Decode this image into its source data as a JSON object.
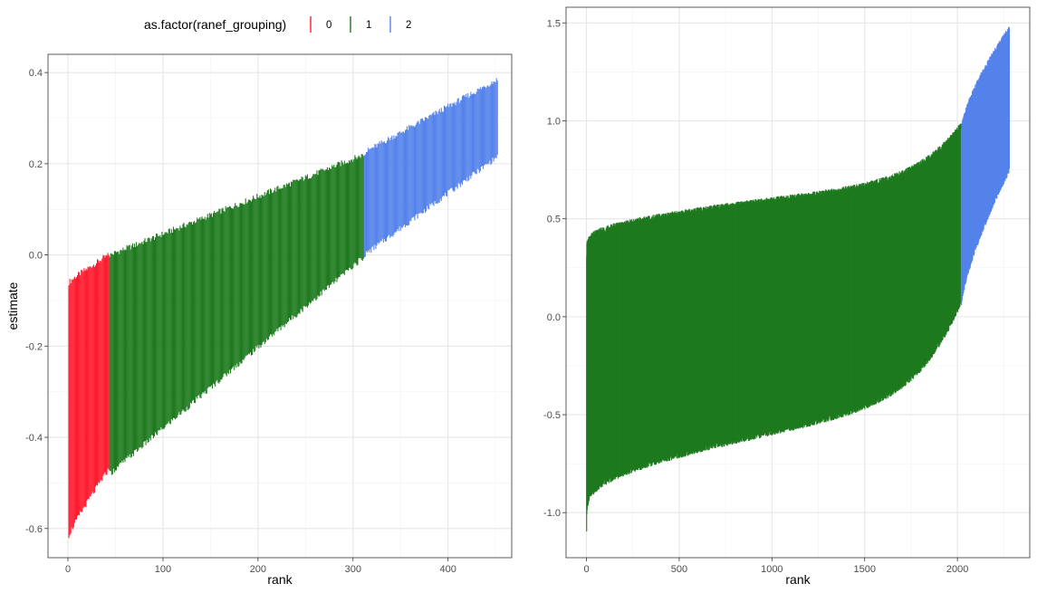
{
  "legend": {
    "title": "as.factor(ranef_grouping)",
    "position": "top",
    "entries": [
      {
        "label": "0",
        "color": "#FF1A2E"
      },
      {
        "label": "1",
        "color": "#1F7A1F"
      },
      {
        "label": "2",
        "color": "#5583EB"
      }
    ]
  },
  "chart_data": [
    {
      "type": "errorbar",
      "xlabel": "rank",
      "ylabel": "estimate",
      "xlim": [
        -21,
        467
      ],
      "ylim": [
        -0.664,
        0.44
      ],
      "xticks": [
        0,
        100,
        200,
        300,
        400
      ],
      "yticks": [
        -0.6,
        -0.4,
        -0.2,
        0.0,
        0.2,
        0.4
      ],
      "ytick_labels": [
        "-0.6",
        "-0.4",
        "-0.2",
        "0.0",
        "0.2",
        "0.4"
      ],
      "grid": true,
      "series": [
        {
          "name": "0",
          "color": "#FF1A2E",
          "rank_range": [
            1,
            43
          ],
          "upper_range": [
            -0.06,
            0.0
          ],
          "lower_range": [
            -0.615,
            -0.47
          ]
        },
        {
          "name": "1",
          "color": "#1F7A1F",
          "rank_range": [
            44,
            311
          ],
          "upper_range": [
            0.0,
            0.22
          ],
          "lower_range": [
            -0.48,
            -0.005
          ]
        },
        {
          "name": "2",
          "color": "#5583EB",
          "rank_range": [
            312,
            452
          ],
          "upper_range": [
            0.225,
            0.385
          ],
          "lower_range": [
            0.0,
            0.215
          ]
        }
      ]
    },
    {
      "type": "errorbar",
      "xlabel": "rank",
      "ylabel": "estimate",
      "xlim": [
        -110,
        2390
      ],
      "ylim": [
        -1.23,
        1.58
      ],
      "xticks": [
        0,
        500,
        1000,
        1500,
        2000
      ],
      "yticks": [
        -1.0,
        -0.5,
        0.0,
        0.5,
        1.0,
        1.5
      ],
      "ytick_labels": [
        "-1.0",
        "-0.5",
        "0.0",
        "0.5",
        "1.0",
        "1.5"
      ],
      "grid": true,
      "series": [
        {
          "name": "1",
          "color": "#1F7A1F",
          "rank_range": [
            1,
            2020
          ],
          "upper_range": [
            0.3,
            0.98
          ],
          "lower_range": [
            -1.1,
            0.08
          ]
        },
        {
          "name": "2",
          "color": "#5583EB",
          "rank_range": [
            2021,
            2280
          ],
          "upper_range": [
            0.95,
            1.47
          ],
          "lower_range": [
            0.05,
            0.75
          ]
        }
      ]
    }
  ]
}
